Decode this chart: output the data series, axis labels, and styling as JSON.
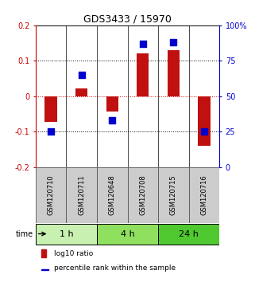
{
  "title": "GDS3433 / 15970",
  "samples": [
    "GSM120710",
    "GSM120711",
    "GSM120648",
    "GSM120708",
    "GSM120715",
    "GSM120716"
  ],
  "log10_ratio": [
    -0.072,
    0.022,
    -0.042,
    0.12,
    0.13,
    -0.14
  ],
  "percentile_rank": [
    25,
    65,
    33,
    87,
    88,
    25
  ],
  "groups": [
    {
      "label": "1 h",
      "cols": [
        0,
        1
      ],
      "color": "#c8f0b0"
    },
    {
      "label": "4 h",
      "cols": [
        2,
        3
      ],
      "color": "#90e060"
    },
    {
      "label": "24 h",
      "cols": [
        4,
        5
      ],
      "color": "#50c830"
    }
  ],
  "bar_color": "#c01010",
  "dot_color": "#0000cc",
  "left_ylim": [
    -0.2,
    0.2
  ],
  "right_ylim": [
    0,
    100
  ],
  "left_yticks": [
    0.2,
    0.1,
    0.0,
    -0.1,
    -0.2
  ],
  "left_yticklabels": [
    "0.2",
    "0.1",
    "0",
    "-0.1",
    "-0.2"
  ],
  "right_yticks": [
    100,
    75,
    50,
    25,
    0
  ],
  "right_yticklabels": [
    "100%",
    "75",
    "50",
    "25",
    "0"
  ],
  "hline_black": [
    0.1,
    -0.1
  ],
  "hline_red": [
    0.0
  ],
  "bar_width": 0.4,
  "dot_size": 28,
  "title_fontsize": 9,
  "tick_fontsize": 7,
  "label_fontsize": 7,
  "sample_label_fontsize": 6,
  "legend_fontsize": 6.5,
  "group_label_fontsize": 8,
  "sample_box_color": "#cccccc",
  "sample_box_edge": "#555555"
}
